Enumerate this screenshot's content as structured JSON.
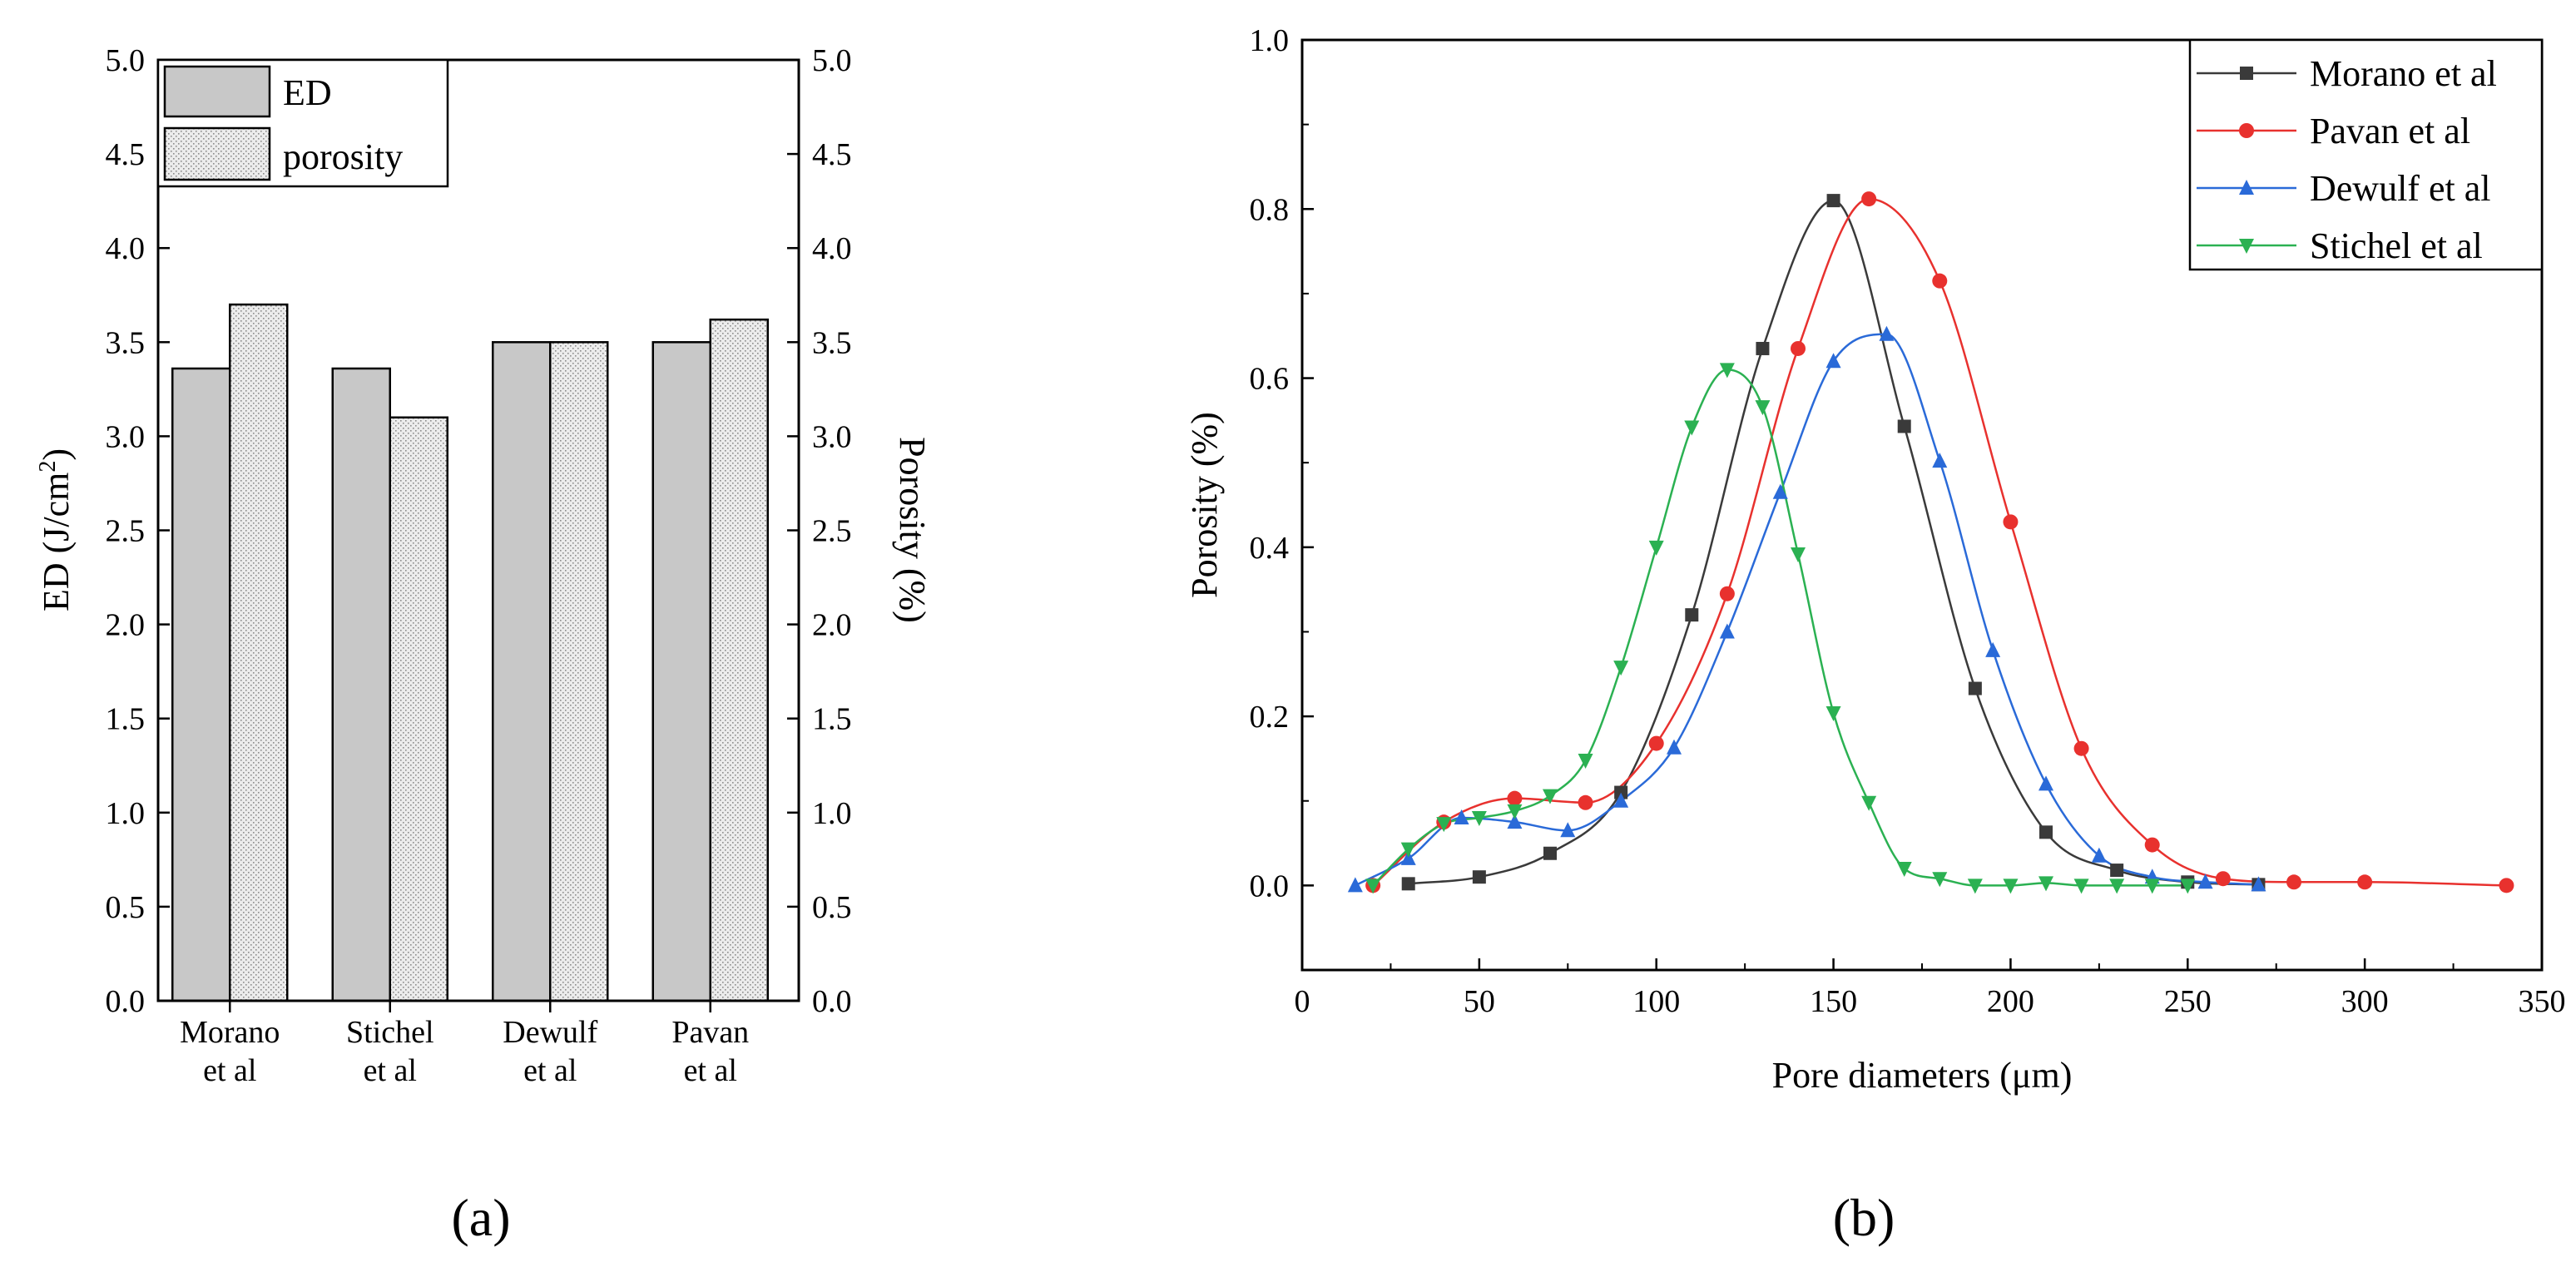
{
  "panel_labels": {
    "a": "(a)",
    "b": "(b)"
  },
  "chart_data": [
    {
      "type": "bar",
      "panel": "a",
      "categories": [
        [
          "Morano",
          "et al"
        ],
        [
          "Stichel",
          "et al"
        ],
        [
          "Dewulf",
          "et al"
        ],
        [
          "Pavan",
          "et al"
        ]
      ],
      "series": [
        {
          "name": "ED",
          "values": [
            3.36,
            3.36,
            3.5,
            3.5
          ],
          "fill": "#c8c8c8"
        },
        {
          "name": "porosity",
          "values": [
            3.7,
            3.1,
            3.5,
            3.62
          ],
          "fill": "#e6e6e6"
        }
      ],
      "ylabel_left": "ED (J/cm²)",
      "ylabel_left_base": "ED (J/cm",
      "ylabel_left_sup": "2",
      "ylabel_left_end": ")",
      "ylabel_right": "Porosity (%)",
      "ylim": [
        0,
        5
      ],
      "yticks": [
        "0.0",
        "0.5",
        "1.0",
        "1.5",
        "2.0",
        "2.5",
        "3.0",
        "3.5",
        "4.0",
        "4.5",
        "5.0"
      ],
      "legend_position": "top-left"
    },
    {
      "type": "line",
      "panel": "b",
      "xlabel": "Pore diameters (μm)",
      "ylabel": "Porosity (%)",
      "xlim": [
        0,
        350
      ],
      "ylim": [
        -0.1,
        1.0
      ],
      "xticks": [
        "0",
        "50",
        "100",
        "150",
        "200",
        "250",
        "300",
        "350"
      ],
      "yticks": [
        "0.0",
        "0.2",
        "0.4",
        "0.6",
        "0.8",
        "1.0"
      ],
      "legend_position": "top-right",
      "series": [
        {
          "name": "Morano et al",
          "color": "#3a3a3a",
          "marker": "square",
          "x": [
            30,
            50,
            70,
            90,
            110,
            130,
            150,
            170,
            190,
            210,
            230,
            250,
            270
          ],
          "y": [
            0.002,
            0.01,
            0.038,
            0.11,
            0.32,
            0.635,
            0.81,
            0.543,
            0.233,
            0.063,
            0.018,
            0.004,
            0.001
          ]
        },
        {
          "name": "Pavan et al",
          "color": "#e8312e",
          "marker": "circle",
          "x": [
            20,
            40,
            60,
            80,
            100,
            120,
            140,
            160,
            180,
            200,
            220,
            240,
            260,
            280,
            300,
            340
          ],
          "y": [
            0.0,
            0.075,
            0.103,
            0.098,
            0.168,
            0.345,
            0.635,
            0.812,
            0.715,
            0.43,
            0.162,
            0.048,
            0.008,
            0.004,
            0.004,
            0.0
          ]
        },
        {
          "name": "Dewulf et al",
          "color": "#2a6ad8",
          "marker": "triangle-up",
          "x": [
            15,
            30,
            45,
            60,
            75,
            90,
            105,
            120,
            135,
            150,
            165,
            180,
            195,
            210,
            225,
            240,
            255,
            270
          ],
          "y": [
            0.0,
            0.032,
            0.08,
            0.075,
            0.065,
            0.1,
            0.163,
            0.3,
            0.465,
            0.62,
            0.652,
            0.502,
            0.278,
            0.12,
            0.035,
            0.01,
            0.004,
            0.001
          ]
        },
        {
          "name": "Stichel et al",
          "color": "#2bb152",
          "marker": "triangle-down",
          "x": [
            20,
            30,
            40,
            50,
            60,
            70,
            80,
            90,
            100,
            110,
            120,
            130,
            140,
            150,
            160,
            170,
            180,
            190,
            200,
            210,
            220,
            230,
            240,
            250
          ],
          "y": [
            0.0,
            0.043,
            0.073,
            0.08,
            0.088,
            0.106,
            0.148,
            0.258,
            0.4,
            0.542,
            0.61,
            0.566,
            0.392,
            0.204,
            0.098,
            0.02,
            0.008,
            0.0,
            0.0,
            0.003,
            0.0,
            0.0,
            0.0,
            0.0
          ]
        }
      ]
    }
  ]
}
